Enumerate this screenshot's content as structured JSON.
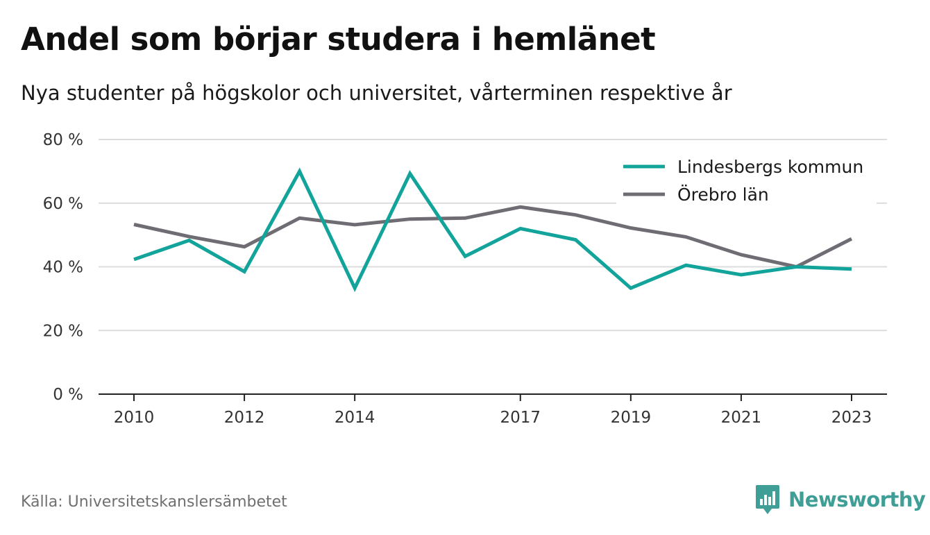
{
  "title": "Andel som börjar studera i hemlänet",
  "subtitle": "Nya studenter på högskolor och universitet, vårterminen respektive år",
  "source": "Källa: Universitetskanslersämbetet",
  "brand": {
    "name": "Newsworthy",
    "color": "#3f9e96",
    "icon": "bar-chart-speech-bubble-icon"
  },
  "chart_data": {
    "type": "line",
    "ylim": [
      0,
      80
    ],
    "yticks": [
      0,
      20,
      40,
      60,
      80
    ],
    "ytick_labels": [
      "0 %",
      "20 %",
      "40 %",
      "60 %",
      "80 %"
    ],
    "xlim": [
      2010,
      2023
    ],
    "xticks": [
      2010,
      2012,
      2014,
      2017,
      2019,
      2021,
      2023
    ],
    "xtick_labels": [
      "2010",
      "2012",
      "2014",
      "2017",
      "2019",
      "2021",
      "2023"
    ],
    "grid": true,
    "legend_position": "top-right",
    "x": [
      2010,
      2011,
      2012,
      2013,
      2014,
      2015,
      2016,
      2017,
      2018,
      2019,
      2020,
      2021,
      2022,
      2023
    ],
    "series": [
      {
        "name": "Lindesbergs kommun",
        "color": "#12a39a",
        "values": [
          42.3,
          48.3,
          38.5,
          70.0,
          33.3,
          69.3,
          43.3,
          52.0,
          48.5,
          33.3,
          40.5,
          37.5,
          40.0,
          39.3
        ]
      },
      {
        "name": "Örebro län",
        "color": "#6f6c74",
        "values": [
          53.3,
          49.5,
          46.3,
          55.3,
          53.2,
          55.0,
          55.3,
          58.8,
          56.3,
          52.2,
          49.4,
          43.8,
          40.0,
          48.8
        ]
      }
    ]
  }
}
